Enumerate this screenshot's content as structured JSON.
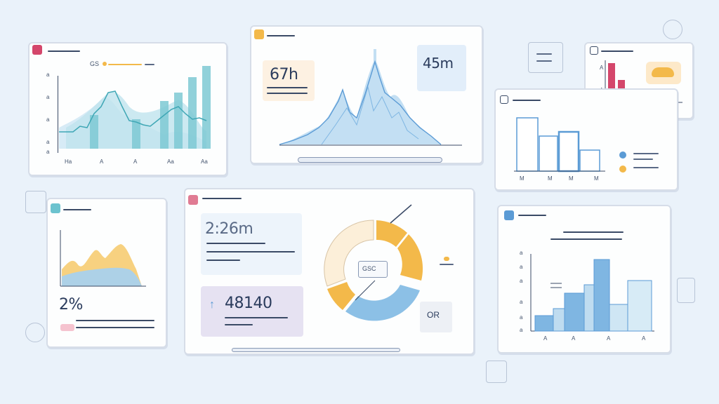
{
  "panel_line_chart": {
    "badge_text": "GS",
    "x_ticks": [
      "Ha",
      "A",
      "A",
      "Aa",
      "Aa"
    ],
    "y_ticks": [
      "a",
      "a",
      "a",
      "a",
      "a"
    ]
  },
  "panel_mountain": {
    "stat_left": "67h",
    "stat_right": "45m"
  },
  "panel_red_bars": {
    "y_ticks": [
      "A",
      "A"
    ]
  },
  "panel_blue_bars": {
    "x_ticks": [
      "M",
      "M",
      "M",
      "M"
    ]
  },
  "panel_area": {
    "stat": "2%"
  },
  "panel_donut": {
    "stat_top": "2:26m",
    "stat_bottom": "48140",
    "center_label": "GSC",
    "side_label": "OR"
  },
  "panel_right_bars": {
    "y_ticks": [
      "a",
      "a",
      "a",
      "a",
      "a",
      "a"
    ],
    "x_ticks": [
      "A",
      "A",
      "A",
      "A"
    ]
  },
  "colors": {
    "teal": "#6cc3cf",
    "light_blue": "#a9d1ec",
    "red": "#d4466b",
    "yellow": "#f3b94a",
    "blue": "#5b9bd5"
  }
}
